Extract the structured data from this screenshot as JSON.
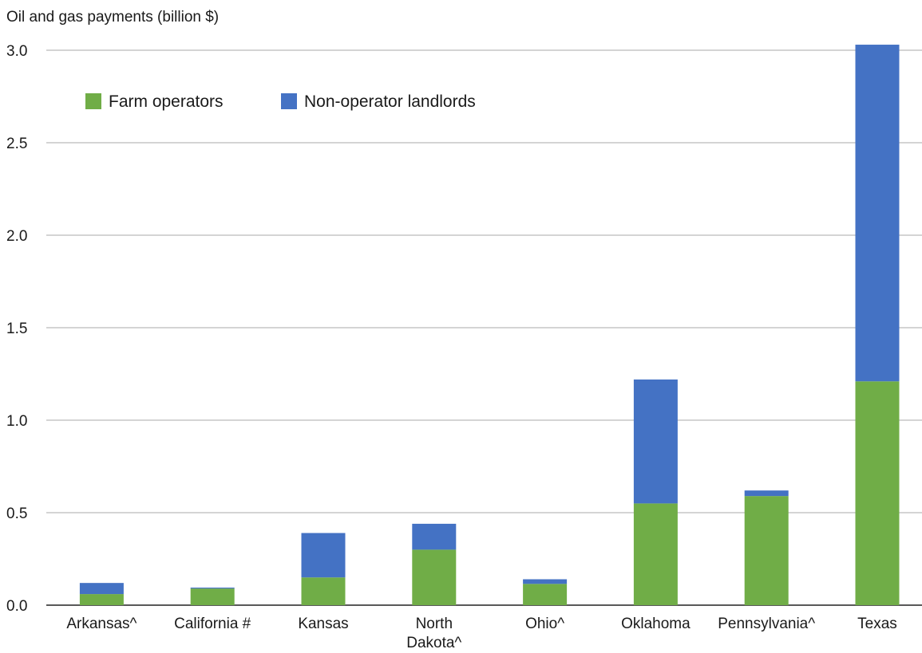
{
  "chart_data": {
    "type": "bar",
    "stacked": true,
    "title": "",
    "ylabel": "Oil and gas payments (billion $)",
    "xlabel": "",
    "ylim": [
      0,
      3.0
    ],
    "yticks": [
      "0.0",
      "0.5",
      "1.0",
      "1.5",
      "2.0",
      "2.5",
      "3.0"
    ],
    "grid": true,
    "legend_position": "top-left",
    "categories": [
      [
        "Arkansas^"
      ],
      [
        "California #"
      ],
      [
        "Kansas"
      ],
      [
        "North",
        "Dakota^"
      ],
      [
        "Ohio^"
      ],
      [
        "Oklahoma"
      ],
      [
        "Pennsylvania^"
      ],
      [
        "Texas"
      ]
    ],
    "series": [
      {
        "name": "Farm operators",
        "color": "#70ad47",
        "values": [
          0.06,
          0.09,
          0.15,
          0.3,
          0.115,
          0.55,
          0.59,
          1.21
        ]
      },
      {
        "name": "Non-operator landlords",
        "color": "#4472c4",
        "values": [
          0.06,
          0.005,
          0.24,
          0.14,
          0.025,
          0.67,
          0.03,
          1.82
        ]
      }
    ]
  }
}
